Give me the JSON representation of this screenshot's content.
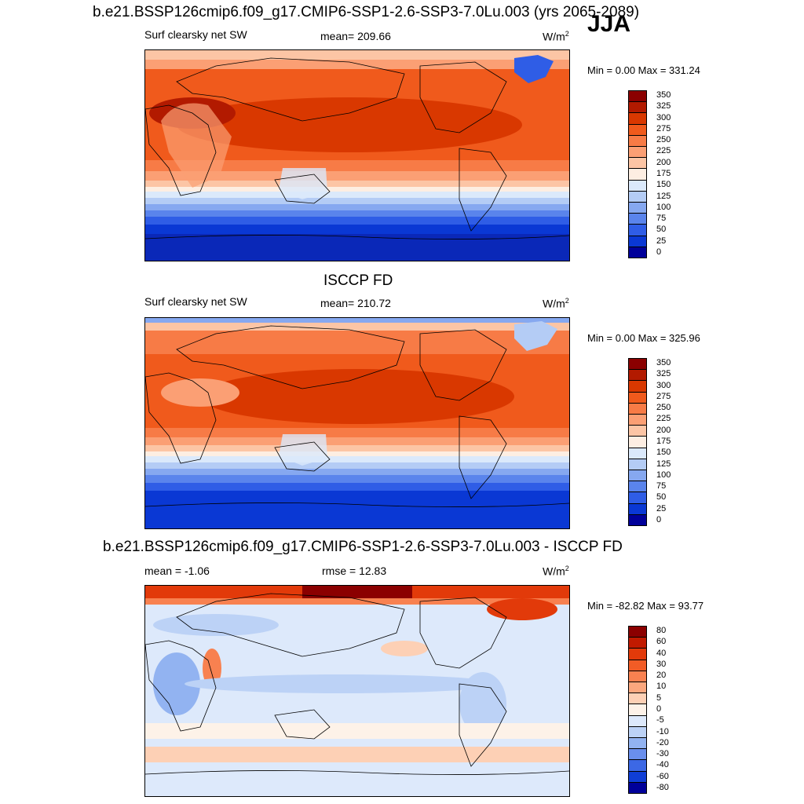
{
  "figure": {
    "title": "b.e21.BSSP126cmip6.f09_g17.CMIP6-SSP1-2.6-SSP3-7.0Lu.003 (yrs 2065-2089)",
    "season": "JJA"
  },
  "chart_data": [
    {
      "type": "heatmap",
      "panel": "model",
      "left_label": "Surf clearsky net SW",
      "center_label": "mean= 209.66",
      "units_base": "W/m",
      "units_exp": "2",
      "minmax": "Min =   0.00 Max = 331.24",
      "mean": 209.66,
      "min": 0.0,
      "max": 331.24,
      "levels": [
        "350",
        "325",
        "300",
        "275",
        "250",
        "225",
        "200",
        "175",
        "150",
        "125",
        "100",
        "75",
        "50",
        "25",
        "0"
      ],
      "colors": [
        "#8b0000",
        "#b21a00",
        "#d93800",
        "#f05a1c",
        "#f77b46",
        "#fb9f74",
        "#fcc5a5",
        "#fdeee2",
        "#dbe9fb",
        "#b4ccf5",
        "#86a8f0",
        "#5a84ec",
        "#2f5de6",
        "#0a38d4",
        "#00009a"
      ]
    },
    {
      "type": "heatmap",
      "panel": "observation",
      "title": "ISCCP FD",
      "left_label": "Surf clearsky net SW",
      "center_label": "mean= 210.72",
      "units_base": "W/m",
      "units_exp": "2",
      "minmax": "Min =   0.00 Max = 325.96",
      "mean": 210.72,
      "min": 0.0,
      "max": 325.96,
      "levels": [
        "350",
        "325",
        "300",
        "275",
        "250",
        "225",
        "200",
        "175",
        "150",
        "125",
        "100",
        "75",
        "50",
        "25",
        "0"
      ],
      "colors": [
        "#8b0000",
        "#b21a00",
        "#d93800",
        "#f05a1c",
        "#f77b46",
        "#fb9f74",
        "#fcc5a5",
        "#fdeee2",
        "#dbe9fb",
        "#b4ccf5",
        "#86a8f0",
        "#5a84ec",
        "#2f5de6",
        "#0a38d4",
        "#00009a"
      ]
    },
    {
      "type": "heatmap",
      "panel": "difference",
      "title": "b.e21.BSSP126cmip6.f09_g17.CMIP6-SSP1-2.6-SSP3-7.0Lu.003 - ISCCP FD",
      "left_label": "mean =  -1.06",
      "center_label": "rmse =  12.83",
      "units_base": "W/m",
      "units_exp": "2",
      "minmax": "Min = -82.82 Max =  93.77",
      "mean": -1.06,
      "rmse": 12.83,
      "min": -82.82,
      "max": 93.77,
      "levels": [
        "80",
        "60",
        "40",
        "30",
        "20",
        "10",
        "5",
        "0",
        "-5",
        "-10",
        "-20",
        "-30",
        "-40",
        "-60",
        "-80"
      ],
      "colors": [
        "#8b0000",
        "#c11a00",
        "#e23a0a",
        "#f25c26",
        "#f88150",
        "#fba77e",
        "#fdd0b5",
        "#fdf2e8",
        "#dde9fb",
        "#bcd2f6",
        "#92b3f1",
        "#6a8fed",
        "#3c68e5",
        "#0f3ed6",
        "#00009a"
      ]
    }
  ]
}
